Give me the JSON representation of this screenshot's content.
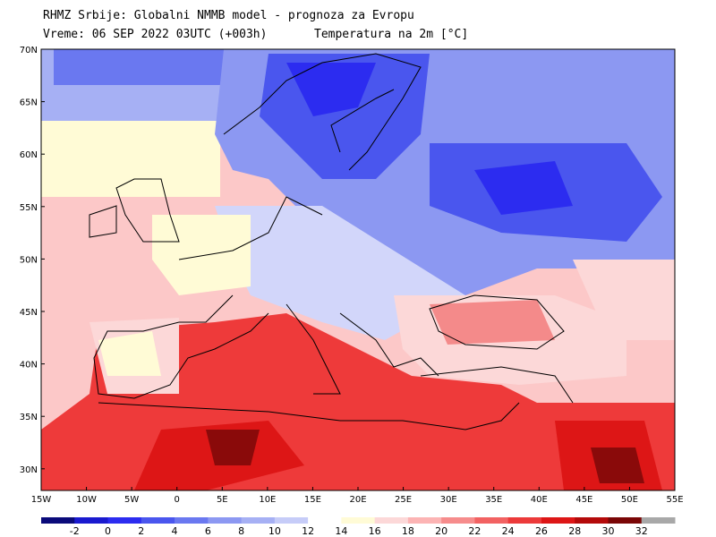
{
  "header": {
    "line1": "RHMZ Srbije: Globalni NMMB model - prognoza za Evropu",
    "line2": "Vreme: 06 SEP 2022 03UTC (+003h)",
    "line2b": "Temperatura na 2m [°C]"
  },
  "map": {
    "lat_labels": [
      "70N",
      "65N",
      "60N",
      "55N",
      "50N",
      "45N",
      "40N",
      "35N",
      "30N"
    ],
    "lon_labels": [
      "15W",
      "10W",
      "5W",
      "0",
      "5E",
      "10E",
      "15E",
      "20E",
      "25E",
      "30E",
      "35E",
      "40E",
      "45E",
      "50E",
      "55E"
    ],
    "colors": {
      "cold_deep": "#3a3ae8",
      "cold": "#6a78f0",
      "cool": "#a6b0f4",
      "mild": "#d2d6fa",
      "neutral": "#fffbd6",
      "warm_light": "#fcc8c8",
      "warm": "#f48a8a",
      "hot": "#ee3a3a",
      "very_hot": "#dd1616",
      "extreme": "#8a0a0a"
    }
  },
  "colorbar": {
    "labels": [
      "-2",
      "0",
      "2",
      "4",
      "6",
      "8",
      "10",
      "12",
      "14",
      "16",
      "18",
      "20",
      "22",
      "24",
      "26",
      "28",
      "30",
      "32"
    ],
    "swatches": [
      "#0a0a7a",
      "#1a1acf",
      "#2c2cf0",
      "#4a56ee",
      "#6a78f0",
      "#8c98f2",
      "#a6b0f4",
      "#c6ccf8",
      "#ffffff",
      "#fffbd6",
      "#fcd8d8",
      "#fcb4b4",
      "#f68c8c",
      "#f26262",
      "#ec3a3a",
      "#dd1616",
      "#b40a0a",
      "#7a0606",
      "#a8a8a8"
    ]
  }
}
